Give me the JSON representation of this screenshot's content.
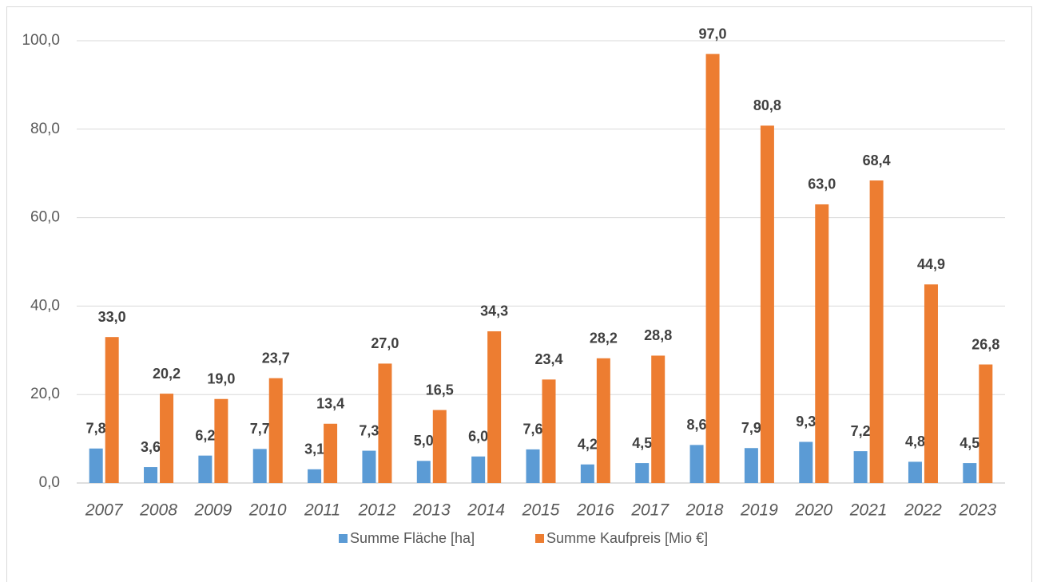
{
  "chart_data": {
    "type": "bar",
    "categories": [
      "2007",
      "2008",
      "2009",
      "2010",
      "2011",
      "2012",
      "2013",
      "2014",
      "2015",
      "2016",
      "2017",
      "2018",
      "2019",
      "2020",
      "2021",
      "2022",
      "2023"
    ],
    "series": [
      {
        "name": "Summe Fläche [ha]",
        "color": "#5b9bd5",
        "values": [
          7.8,
          3.6,
          6.2,
          7.7,
          3.1,
          7.3,
          5.0,
          6.0,
          7.6,
          4.2,
          4.5,
          8.6,
          7.9,
          9.3,
          7.2,
          4.8,
          4.5
        ],
        "value_labels": [
          "7,8",
          "3,6",
          "6,2",
          "7,7",
          "3,1",
          "7,3",
          "5,0",
          "6,0",
          "7,6",
          "4,2",
          "4,5",
          "8,6",
          "7,9",
          "9,3",
          "7,2",
          "4,8",
          "4,5"
        ]
      },
      {
        "name": "Summe Kaufpreis [Mio €]",
        "color": "#ed7d31",
        "values": [
          33.0,
          20.2,
          19.0,
          23.7,
          13.4,
          27.0,
          16.5,
          34.3,
          23.4,
          28.2,
          28.8,
          97.0,
          80.8,
          63.0,
          68.4,
          44.9,
          26.8
        ],
        "value_labels": [
          "33,0",
          "20,2",
          "19,0",
          "23,7",
          "13,4",
          "27,0",
          "16,5",
          "34,3",
          "23,4",
          "28,2",
          "28,8",
          "97,0",
          "80,8",
          "63,0",
          "68,4",
          "44,9",
          "26,8"
        ]
      }
    ],
    "ylim": [
      0,
      100
    ],
    "yticks": [
      {
        "value": 0,
        "label": "0,0"
      },
      {
        "value": 20,
        "label": "20,0"
      },
      {
        "value": 40,
        "label": "40,0"
      },
      {
        "value": 60,
        "label": "60,0"
      },
      {
        "value": 80,
        "label": "80,0"
      },
      {
        "value": 100,
        "label": "100,0"
      }
    ],
    "grid": true,
    "legend": "bottom"
  }
}
